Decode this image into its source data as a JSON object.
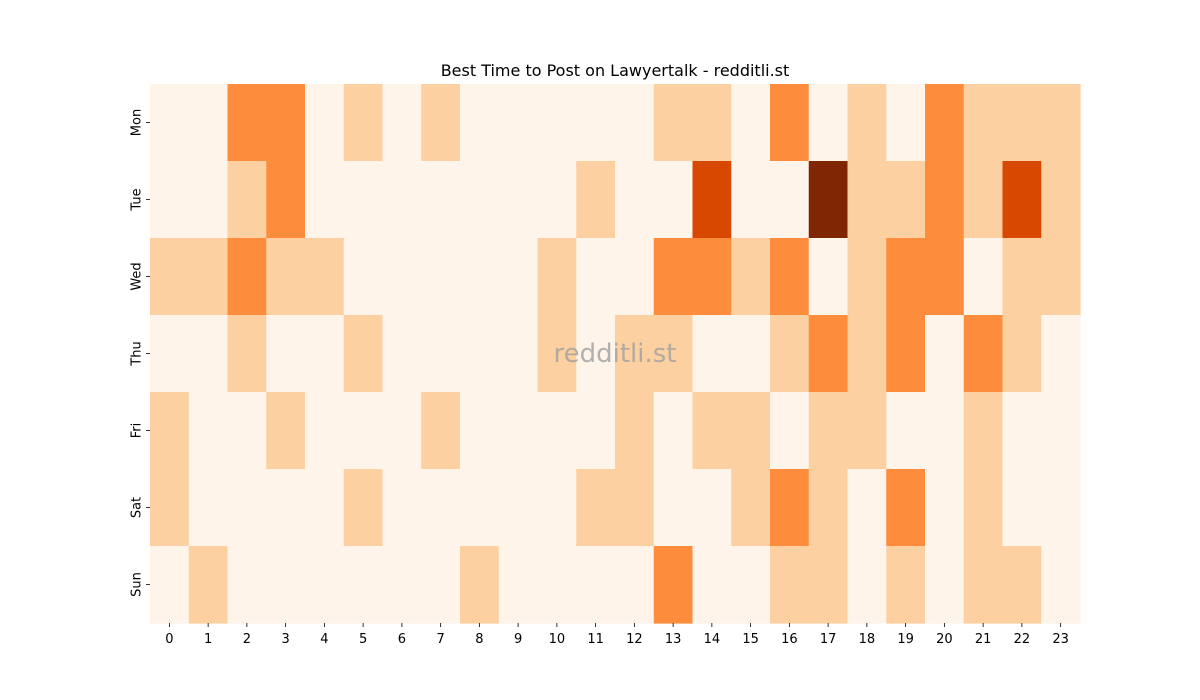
{
  "chart_data": {
    "type": "heatmap",
    "title": "Best Time to Post on Lawyertalk - redditli.st",
    "watermark": "redditli.st",
    "x_labels": [
      "0",
      "1",
      "2",
      "3",
      "4",
      "5",
      "6",
      "7",
      "8",
      "9",
      "10",
      "11",
      "12",
      "13",
      "14",
      "15",
      "16",
      "17",
      "18",
      "19",
      "20",
      "21",
      "22",
      "23"
    ],
    "y_labels": [
      "Mon",
      "Tue",
      "Wed",
      "Thu",
      "Fri",
      "Sat",
      "Sun"
    ],
    "levels": [
      [
        0,
        0,
        2,
        2,
        0,
        1,
        0,
        1,
        0,
        0,
        0,
        0,
        0,
        1,
        1,
        0,
        2,
        0,
        1,
        0,
        2,
        1,
        1,
        1
      ],
      [
        0,
        0,
        1,
        2,
        0,
        0,
        0,
        0,
        0,
        0,
        0,
        1,
        0,
        0,
        3,
        0,
        0,
        4,
        1,
        1,
        2,
        1,
        3,
        1
      ],
      [
        1,
        1,
        2,
        1,
        1,
        0,
        0,
        0,
        0,
        0,
        1,
        0,
        0,
        2,
        2,
        1,
        2,
        0,
        1,
        2,
        2,
        0,
        1,
        1
      ],
      [
        0,
        0,
        1,
        0,
        0,
        1,
        0,
        0,
        0,
        0,
        1,
        0,
        1,
        1,
        0,
        0,
        1,
        2,
        1,
        2,
        0,
        2,
        1,
        0
      ],
      [
        1,
        0,
        0,
        1,
        0,
        0,
        0,
        1,
        0,
        0,
        0,
        0,
        1,
        0,
        1,
        1,
        0,
        1,
        1,
        0,
        0,
        1,
        0,
        0
      ],
      [
        1,
        0,
        0,
        0,
        0,
        1,
        0,
        0,
        0,
        0,
        0,
        1,
        1,
        0,
        0,
        1,
        2,
        1,
        0,
        2,
        0,
        1,
        0,
        0
      ],
      [
        0,
        1,
        0,
        0,
        0,
        0,
        0,
        0,
        1,
        0,
        0,
        0,
        0,
        2,
        0,
        0,
        1,
        1,
        0,
        1,
        0,
        1,
        1,
        0
      ]
    ],
    "colormap": [
      "#fef4e9",
      "#fcd0a1",
      "#fd8d3c",
      "#d94801",
      "#7f2704"
    ],
    "grid": false,
    "legend": "none"
  }
}
